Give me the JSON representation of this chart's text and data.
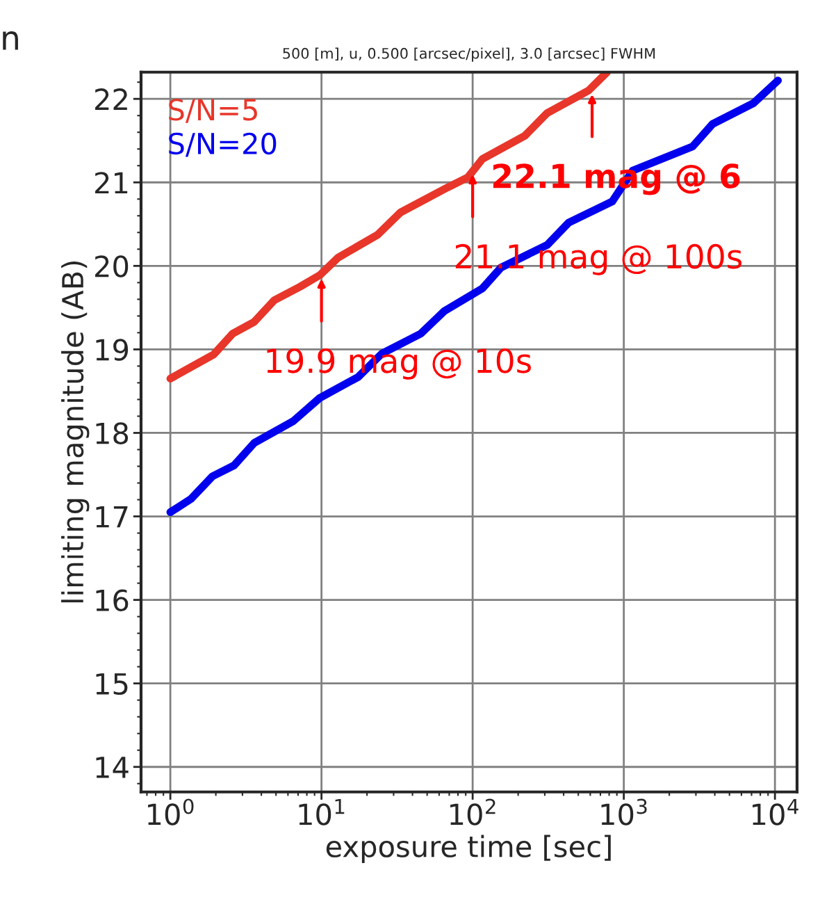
{
  "chart_data": {
    "type": "line",
    "title": "500 [m], u, 0.500 [arcsec/pixel], 3.0 [arcsec] FWHM",
    "xlabel": "exposure time [sec]",
    "ylabel": "limiting magnitude (AB)",
    "log": "x",
    "xlim": [
      0.64,
      14000
    ],
    "ylim": [
      13.7,
      22.32
    ],
    "xticks": [
      {
        "value": 1,
        "label": "10$^{0}$"
      },
      {
        "value": 10,
        "label": "10$^{1}$"
      },
      {
        "value": 100,
        "label": "10$^{2}$"
      },
      {
        "value": 1000,
        "label": "10$^{3}$"
      },
      {
        "value": 10000,
        "label": "10$^{4}$"
      }
    ],
    "yticks": [
      14,
      15,
      16,
      17,
      18,
      19,
      20,
      21,
      22
    ],
    "grid": true,
    "legend": "top left",
    "line_style": "solid",
    "marker": "none",
    "series": [
      {
        "name": "S/N=5",
        "color": "#e8362a",
        "x": [
          1,
          1.94,
          2.59,
          3.59,
          4.88,
          7.2,
          9.77,
          12.9,
          23.4,
          33.3,
          68.4,
          93,
          116,
          222,
          311,
          585,
          775
        ],
        "values": [
          18.65,
          18.94,
          19.19,
          19.33,
          19.59,
          19.75,
          19.89,
          20.1,
          20.37,
          20.64,
          20.94,
          21.06,
          21.28,
          21.56,
          21.83,
          22.1,
          22.32
        ]
      },
      {
        "name": "S/N=20",
        "color": "#0000ee",
        "x": [
          1,
          1.37,
          1.9,
          2.64,
          3.59,
          6.5,
          9.77,
          17.5,
          25.1,
          45.5,
          65,
          116,
          154,
          311,
          433,
          838,
          1143,
          2854,
          3869,
          7232,
          10470
        ],
        "values": [
          17.05,
          17.21,
          17.48,
          17.61,
          17.88,
          18.14,
          18.42,
          18.67,
          18.95,
          19.19,
          19.46,
          19.73,
          19.98,
          20.25,
          20.52,
          20.77,
          21.14,
          21.43,
          21.7,
          21.95,
          22.22
        ]
      }
    ],
    "annotations": [
      {
        "text": "19.9 mag @ 10s",
        "x": 10,
        "y": 19.87
      },
      {
        "text": "21.1 mag @ 100s",
        "x": 100,
        "y": 21.12
      },
      {
        "text": "22.1 mag @ 6",
        "x": 617,
        "y": 22.08
      },
      "n"
    ]
  }
}
